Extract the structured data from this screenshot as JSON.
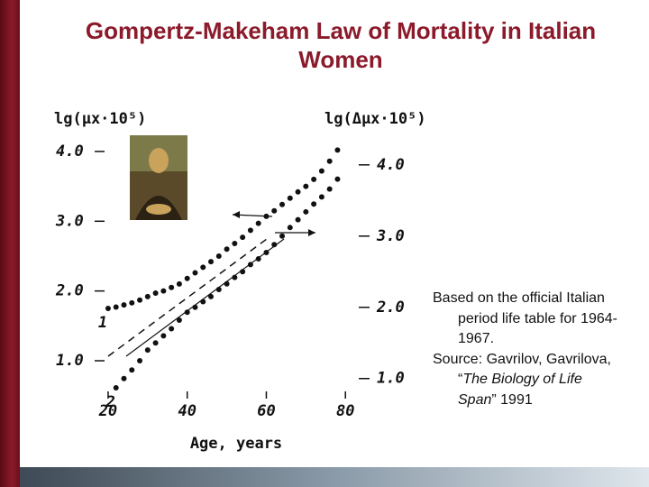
{
  "chart_data": {
    "type": "scatter",
    "title": "Gompertz-Makeham Law of Mortality in Italian Women",
    "x_label": "Age, years",
    "y_label": "lg(μx·10⁵)",
    "y2_label": "lg(Δμx·10⁵)",
    "x": [
      20,
      22,
      24,
      26,
      28,
      30,
      32,
      34,
      36,
      38,
      40,
      42,
      44,
      46,
      48,
      50,
      52,
      54,
      56,
      58,
      60,
      62,
      64,
      66,
      68,
      70,
      72,
      74,
      76,
      78
    ],
    "series": [
      {
        "name": "1",
        "color": "#111111",
        "values": [
          1.75,
          1.77,
          1.8,
          1.83,
          1.87,
          1.92,
          1.97,
          2.0,
          2.05,
          2.1,
          2.18,
          2.26,
          2.34,
          2.42,
          2.5,
          2.6,
          2.68,
          2.77,
          2.87,
          2.97,
          3.07,
          3.15,
          3.24,
          3.33,
          3.42,
          3.5,
          3.6,
          3.72,
          3.86,
          4.02
        ]
      },
      {
        "name": "2",
        "color": "#111111",
        "axis": "y2",
        "values": [
          null,
          0.87,
          1.0,
          1.12,
          1.25,
          1.4,
          1.5,
          1.6,
          1.7,
          1.82,
          1.93,
          2.0,
          2.08,
          2.15,
          2.25,
          2.33,
          2.42,
          2.5,
          2.6,
          2.68,
          2.77,
          2.88,
          3.0,
          3.12,
          3.23,
          3.34,
          3.45,
          3.55,
          3.66,
          3.8
        ]
      }
    ],
    "xlim": [
      15,
      82
    ],
    "xticks": [
      20,
      40,
      60,
      80
    ],
    "ylim": [
      0.5,
      4.4
    ],
    "yticks": [
      {
        "value": 1,
        "label": "1.0"
      },
      {
        "value": 2,
        "label": "2.0"
      },
      {
        "value": 3,
        "label": "3.0"
      },
      {
        "value": 4,
        "label": "4.0"
      }
    ],
    "y2lim": [
      0.76,
      4.58
    ],
    "y2ticks": [
      {
        "value": 1,
        "label": "1.0"
      },
      {
        "value": 2,
        "label": "2.0"
      },
      {
        "value": 3,
        "label": "3.0"
      },
      {
        "value": 4,
        "label": "4.0"
      }
    ],
    "grid": false,
    "notes": {
      "source_text": "Based on the official Italian period life table for 1964-1967.",
      "citation": {
        "before": "Source: Gavrilov, Gavrilova, “",
        "italic": "The Biology of Life Span",
        "after": "” 1991"
      }
    }
  }
}
